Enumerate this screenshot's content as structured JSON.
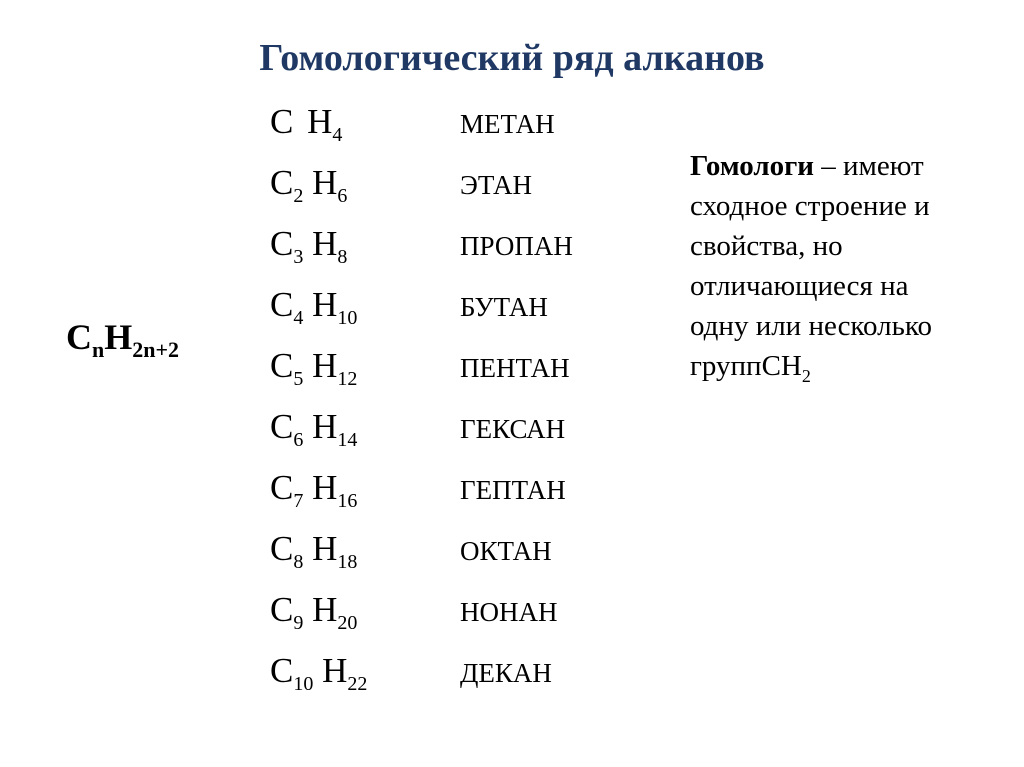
{
  "title": {
    "text": "Гомологический ряд алканов",
    "color": "#1f3864",
    "fontsize": 38
  },
  "general_formula": {
    "base": "C",
    "sub1": "n",
    "base2": "H",
    "sub2": "2n+2",
    "fontsize": 36,
    "sub_fontsize": 22,
    "color": "#000000"
  },
  "series": {
    "formula_fontsize": 35,
    "formula_sub_fontsize": 20,
    "name_fontsize": 27,
    "text_color": "#000000",
    "rows": [
      {
        "c_sub": " ",
        "h_sub": "4",
        "name": "МЕТАН"
      },
      {
        "c_sub": "2",
        "h_sub": "6",
        "name": "ЭТАН"
      },
      {
        "c_sub": "3",
        "h_sub": "8",
        "name": "ПРОПАН"
      },
      {
        "c_sub": "4",
        "h_sub": "10",
        "name": "БУТАН"
      },
      {
        "c_sub": "5",
        "h_sub": "12",
        "name": "ПЕНТАН"
      },
      {
        "c_sub": "6",
        "h_sub": "14",
        "name": "ГЕКСАН"
      },
      {
        "c_sub": "7",
        "h_sub": "16",
        "name": "ГЕПТАН"
      },
      {
        "c_sub": "8",
        "h_sub": "18",
        "name": "ОКТАН"
      },
      {
        "c_sub": "9",
        "h_sub": "20",
        "name": "НОНАН"
      },
      {
        "c_sub": "10",
        "h_sub": "22",
        "name": "ДЕКАН"
      }
    ]
  },
  "definition": {
    "term": "Гомологи",
    "dash": " – ",
    "body_part1": "имеют сходное строение и свойства, но отличающиеся на одну или несколько групп",
    "tail_base": "CH",
    "tail_sub": "2",
    "fontsize": 29,
    "sub_fontsize": 18,
    "color": "#000000"
  }
}
